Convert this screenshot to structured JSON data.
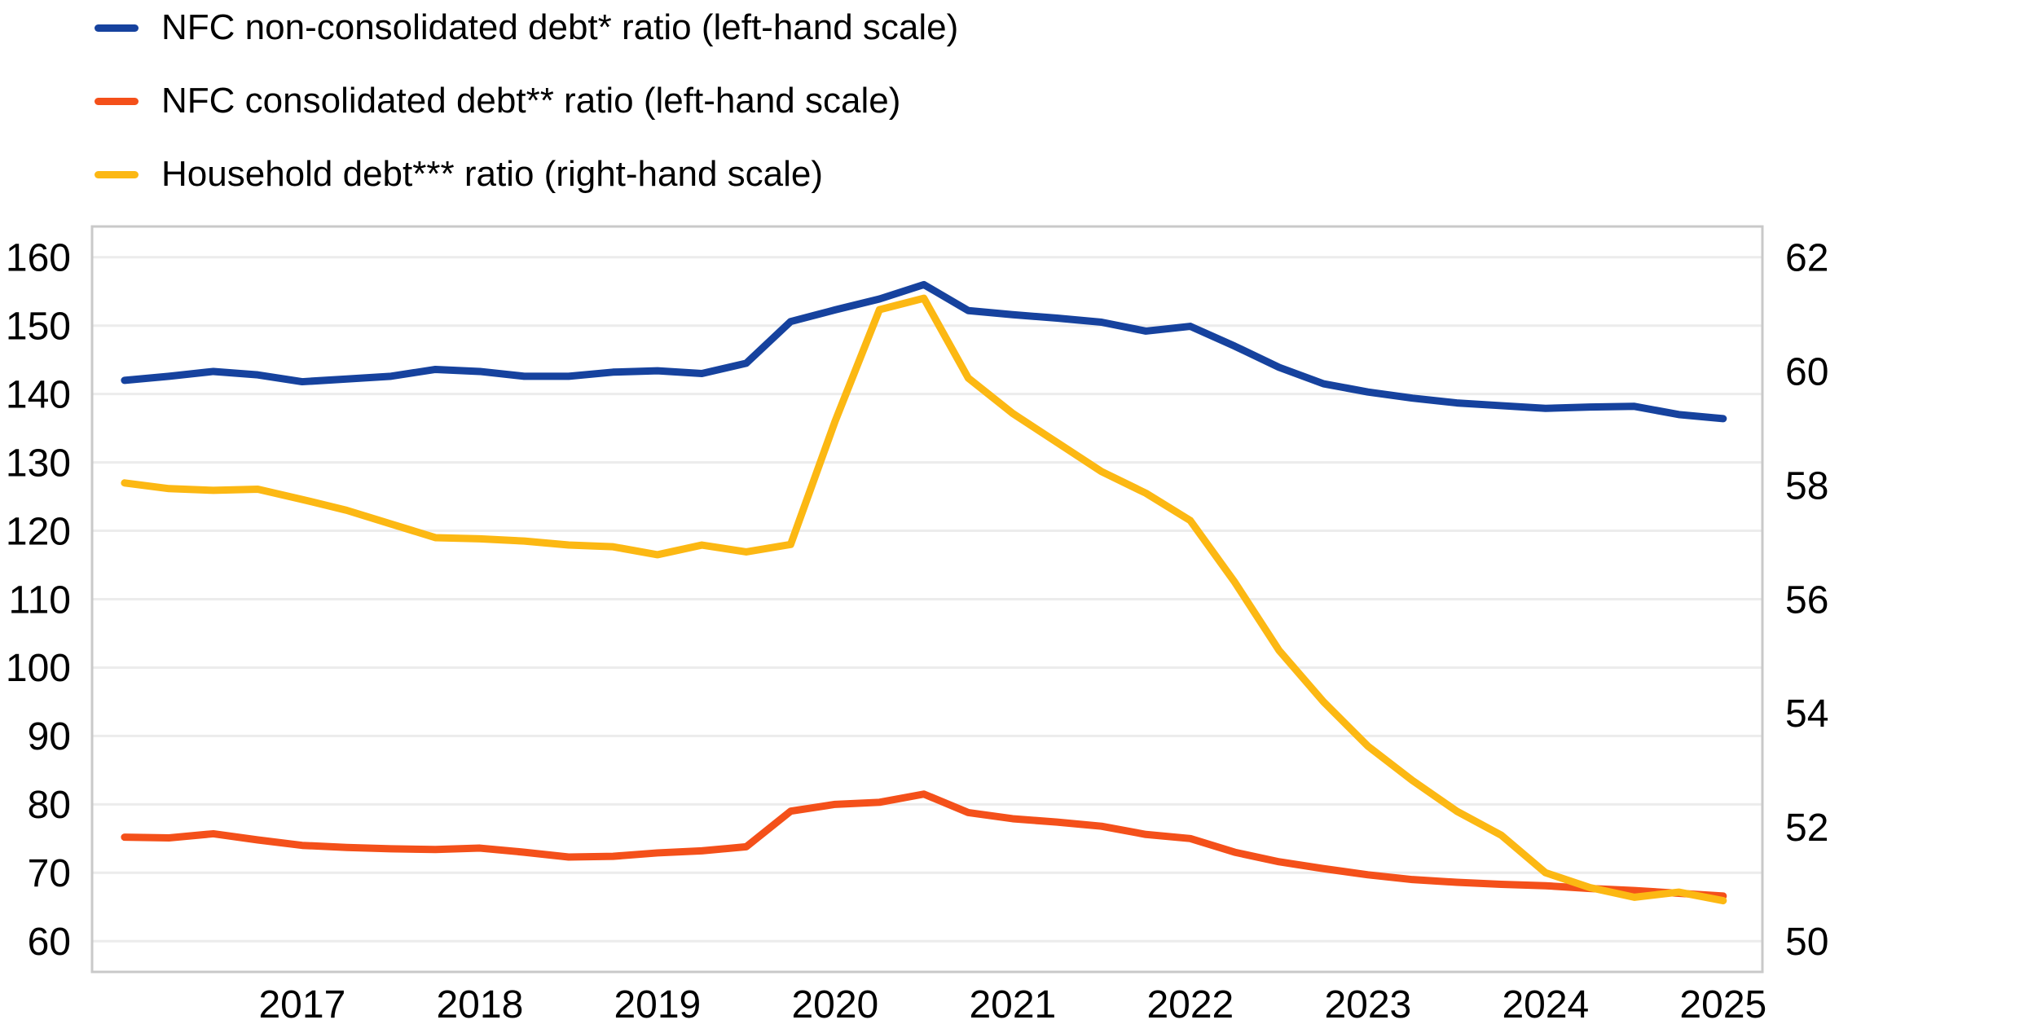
{
  "chart_data": {
    "type": "line",
    "title": "",
    "xlabel": "",
    "ylabel_left": "",
    "ylabel_right": "",
    "grid": "horizontal-only",
    "legend_position": "top-left",
    "x_tick_labels": [
      "2017",
      "2018",
      "2019",
      "2020",
      "2021",
      "2022",
      "2023",
      "2024",
      "2025"
    ],
    "left_axis_ticks": [
      160,
      150,
      140,
      130,
      120,
      110,
      100,
      90,
      80,
      70,
      60
    ],
    "right_axis_ticks": [
      62,
      60,
      58,
      56,
      54,
      52,
      50
    ],
    "left_ylim": [
      55.5,
      164.5
    ],
    "right_ylim": [
      49.46,
      62.54
    ],
    "xlim_years": [
      2015.817,
      2025.221
    ],
    "quarters": [
      "2016Q1",
      "2016Q2",
      "2016Q3",
      "2016Q4",
      "2017Q1",
      "2017Q2",
      "2017Q3",
      "2017Q4",
      "2018Q1",
      "2018Q2",
      "2018Q3",
      "2018Q4",
      "2019Q1",
      "2019Q2",
      "2019Q3",
      "2019Q4",
      "2020Q1",
      "2020Q2",
      "2020Q3",
      "2020Q4",
      "2021Q1",
      "2021Q2",
      "2021Q3",
      "2021Q4",
      "2022Q1",
      "2022Q2",
      "2022Q3",
      "2022Q4",
      "2023Q1",
      "2023Q2",
      "2023Q3",
      "2023Q4",
      "2024Q1",
      "2024Q2",
      "2024Q3",
      "2024Q4",
      "2025Q1"
    ],
    "series": [
      {
        "name": "NFC non-consolidated debt* ratio (left-hand scale)",
        "axis": "left",
        "color": "#16429e",
        "values": [
          142.0,
          142.6,
          143.3,
          142.8,
          141.8,
          142.2,
          142.6,
          143.6,
          143.3,
          142.6,
          142.6,
          143.2,
          143.4,
          143.0,
          144.5,
          150.6,
          152.3,
          153.9,
          156.0,
          152.2,
          151.6,
          151.1,
          150.5,
          149.2,
          149.9,
          147.0,
          143.9,
          141.5,
          140.3,
          139.4,
          138.7,
          138.3,
          137.9,
          138.1,
          138.2,
          137.0,
          136.4
        ]
      },
      {
        "name": "NFC consolidated debt** ratio (left-hand scale)",
        "axis": "left",
        "color": "#f4501a",
        "values": [
          75.2,
          75.1,
          75.7,
          74.8,
          74.0,
          73.7,
          73.5,
          73.4,
          73.6,
          73.0,
          72.3,
          72.4,
          72.9,
          73.2,
          73.8,
          79.0,
          80.0,
          80.3,
          81.5,
          78.8,
          77.9,
          77.4,
          76.8,
          75.6,
          75.0,
          73.0,
          71.6,
          70.6,
          69.7,
          69.0,
          68.6,
          68.3,
          68.1,
          67.7,
          67.4,
          67.0,
          66.6
        ]
      },
      {
        "name": "Household debt*** ratio (right-hand scale)",
        "axis": "right",
        "color": "#fcb813",
        "values": [
          58.04,
          57.94,
          57.91,
          57.93,
          57.75,
          57.56,
          57.32,
          57.08,
          57.06,
          57.02,
          56.95,
          56.92,
          56.78,
          56.95,
          56.83,
          56.96,
          59.12,
          61.08,
          61.28,
          59.88,
          59.26,
          58.75,
          58.24,
          57.86,
          57.38,
          56.3,
          55.1,
          54.2,
          53.42,
          52.82,
          52.28,
          51.86,
          51.2,
          50.94,
          50.77,
          50.86,
          50.71
        ]
      }
    ],
    "colors": {
      "gridline": "#ececec",
      "plot_border": "#c9c9c9",
      "text": "#000000",
      "background": "#ffffff"
    }
  }
}
